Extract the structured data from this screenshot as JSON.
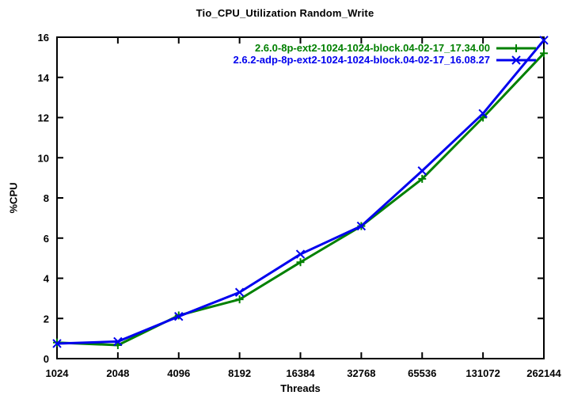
{
  "title": "Tio_CPU_Utilization Random_Write",
  "chart_data": {
    "type": "line",
    "title": "Tio_CPU_Utilization Random_Write",
    "xlabel": "Threads",
    "ylabel": "%CPU",
    "x_scale": "log2",
    "grid": false,
    "legend_position": "top-right-inside",
    "background": "#ffffff",
    "axis_color": "#000000",
    "categories": [
      1024,
      2048,
      4096,
      8192,
      16384,
      32768,
      65536,
      131072,
      262144
    ],
    "ylim": [
      0,
      16
    ],
    "ytick_step": 2,
    "series": [
      {
        "name": "2.6.0-8p-ext2-1024-1024-block.04-02-17_17.34.00",
        "color": "#008000",
        "marker": "plus",
        "values": [
          0.8,
          0.67,
          2.15,
          2.95,
          4.8,
          6.6,
          8.95,
          12.0,
          15.2
        ]
      },
      {
        "name": "2.6.2-adp-8p-ext2-1024-1024-block.04-02-17_16.08.27",
        "color": "#0000ee",
        "marker": "cross",
        "values": [
          0.75,
          0.85,
          2.1,
          3.3,
          5.2,
          6.6,
          9.35,
          12.2,
          15.85
        ]
      }
    ]
  }
}
